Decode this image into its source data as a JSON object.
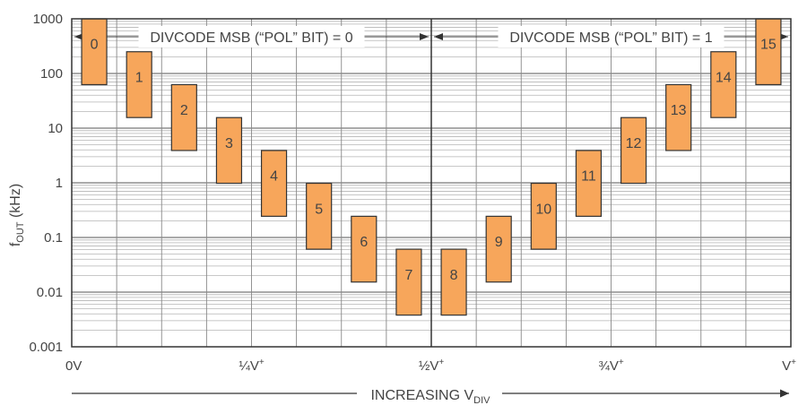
{
  "chart_data": {
    "type": "bar",
    "title": "",
    "ylabel_main": "f",
    "ylabel_sub": "OUT",
    "ylabel_unit": " (kHz)",
    "xlabel_main": "INCREASING V",
    "xlabel_sub": "DIV",
    "yscale": "log",
    "ylim": [
      0.001,
      1000
    ],
    "y_ticks": [
      "1000",
      "100",
      "10",
      "1",
      "0.1",
      "0.01",
      "0.001"
    ],
    "x_ticks": [
      {
        "main": "0V",
        "sup": ""
      },
      {
        "main": "¼V",
        "sup": "+"
      },
      {
        "main": "½V",
        "sup": "+"
      },
      {
        "main": "¾V",
        "sup": "+"
      },
      {
        "main": "V",
        "sup": "+"
      }
    ],
    "regions": [
      {
        "label": "DIVCODE MSB (“POL” BIT) = 0"
      },
      {
        "label": "DIVCODE MSB (“POL” BIT) = 1"
      }
    ],
    "bar_color": "#f7a65b",
    "grid": true,
    "ranges": [
      {
        "label": "0",
        "low": 62.5,
        "high": 1000
      },
      {
        "label": "1",
        "low": 15.625,
        "high": 250
      },
      {
        "label": "2",
        "low": 3.9,
        "high": 62.5
      },
      {
        "label": "3",
        "low": 0.98,
        "high": 15.6
      },
      {
        "label": "4",
        "low": 0.244,
        "high": 3.9
      },
      {
        "label": "5",
        "low": 0.061,
        "high": 0.98
      },
      {
        "label": "6",
        "low": 0.0153,
        "high": 0.244
      },
      {
        "label": "7",
        "low": 0.0038,
        "high": 0.061
      },
      {
        "label": "8",
        "low": 0.0038,
        "high": 0.061
      },
      {
        "label": "9",
        "low": 0.0153,
        "high": 0.244
      },
      {
        "label": "10",
        "low": 0.061,
        "high": 0.98
      },
      {
        "label": "11",
        "low": 0.244,
        "high": 3.9
      },
      {
        "label": "12",
        "low": 0.98,
        "high": 15.6
      },
      {
        "label": "13",
        "low": 3.9,
        "high": 62.5
      },
      {
        "label": "14",
        "low": 15.625,
        "high": 250
      },
      {
        "label": "15",
        "low": 62.5,
        "high": 1000
      }
    ]
  }
}
